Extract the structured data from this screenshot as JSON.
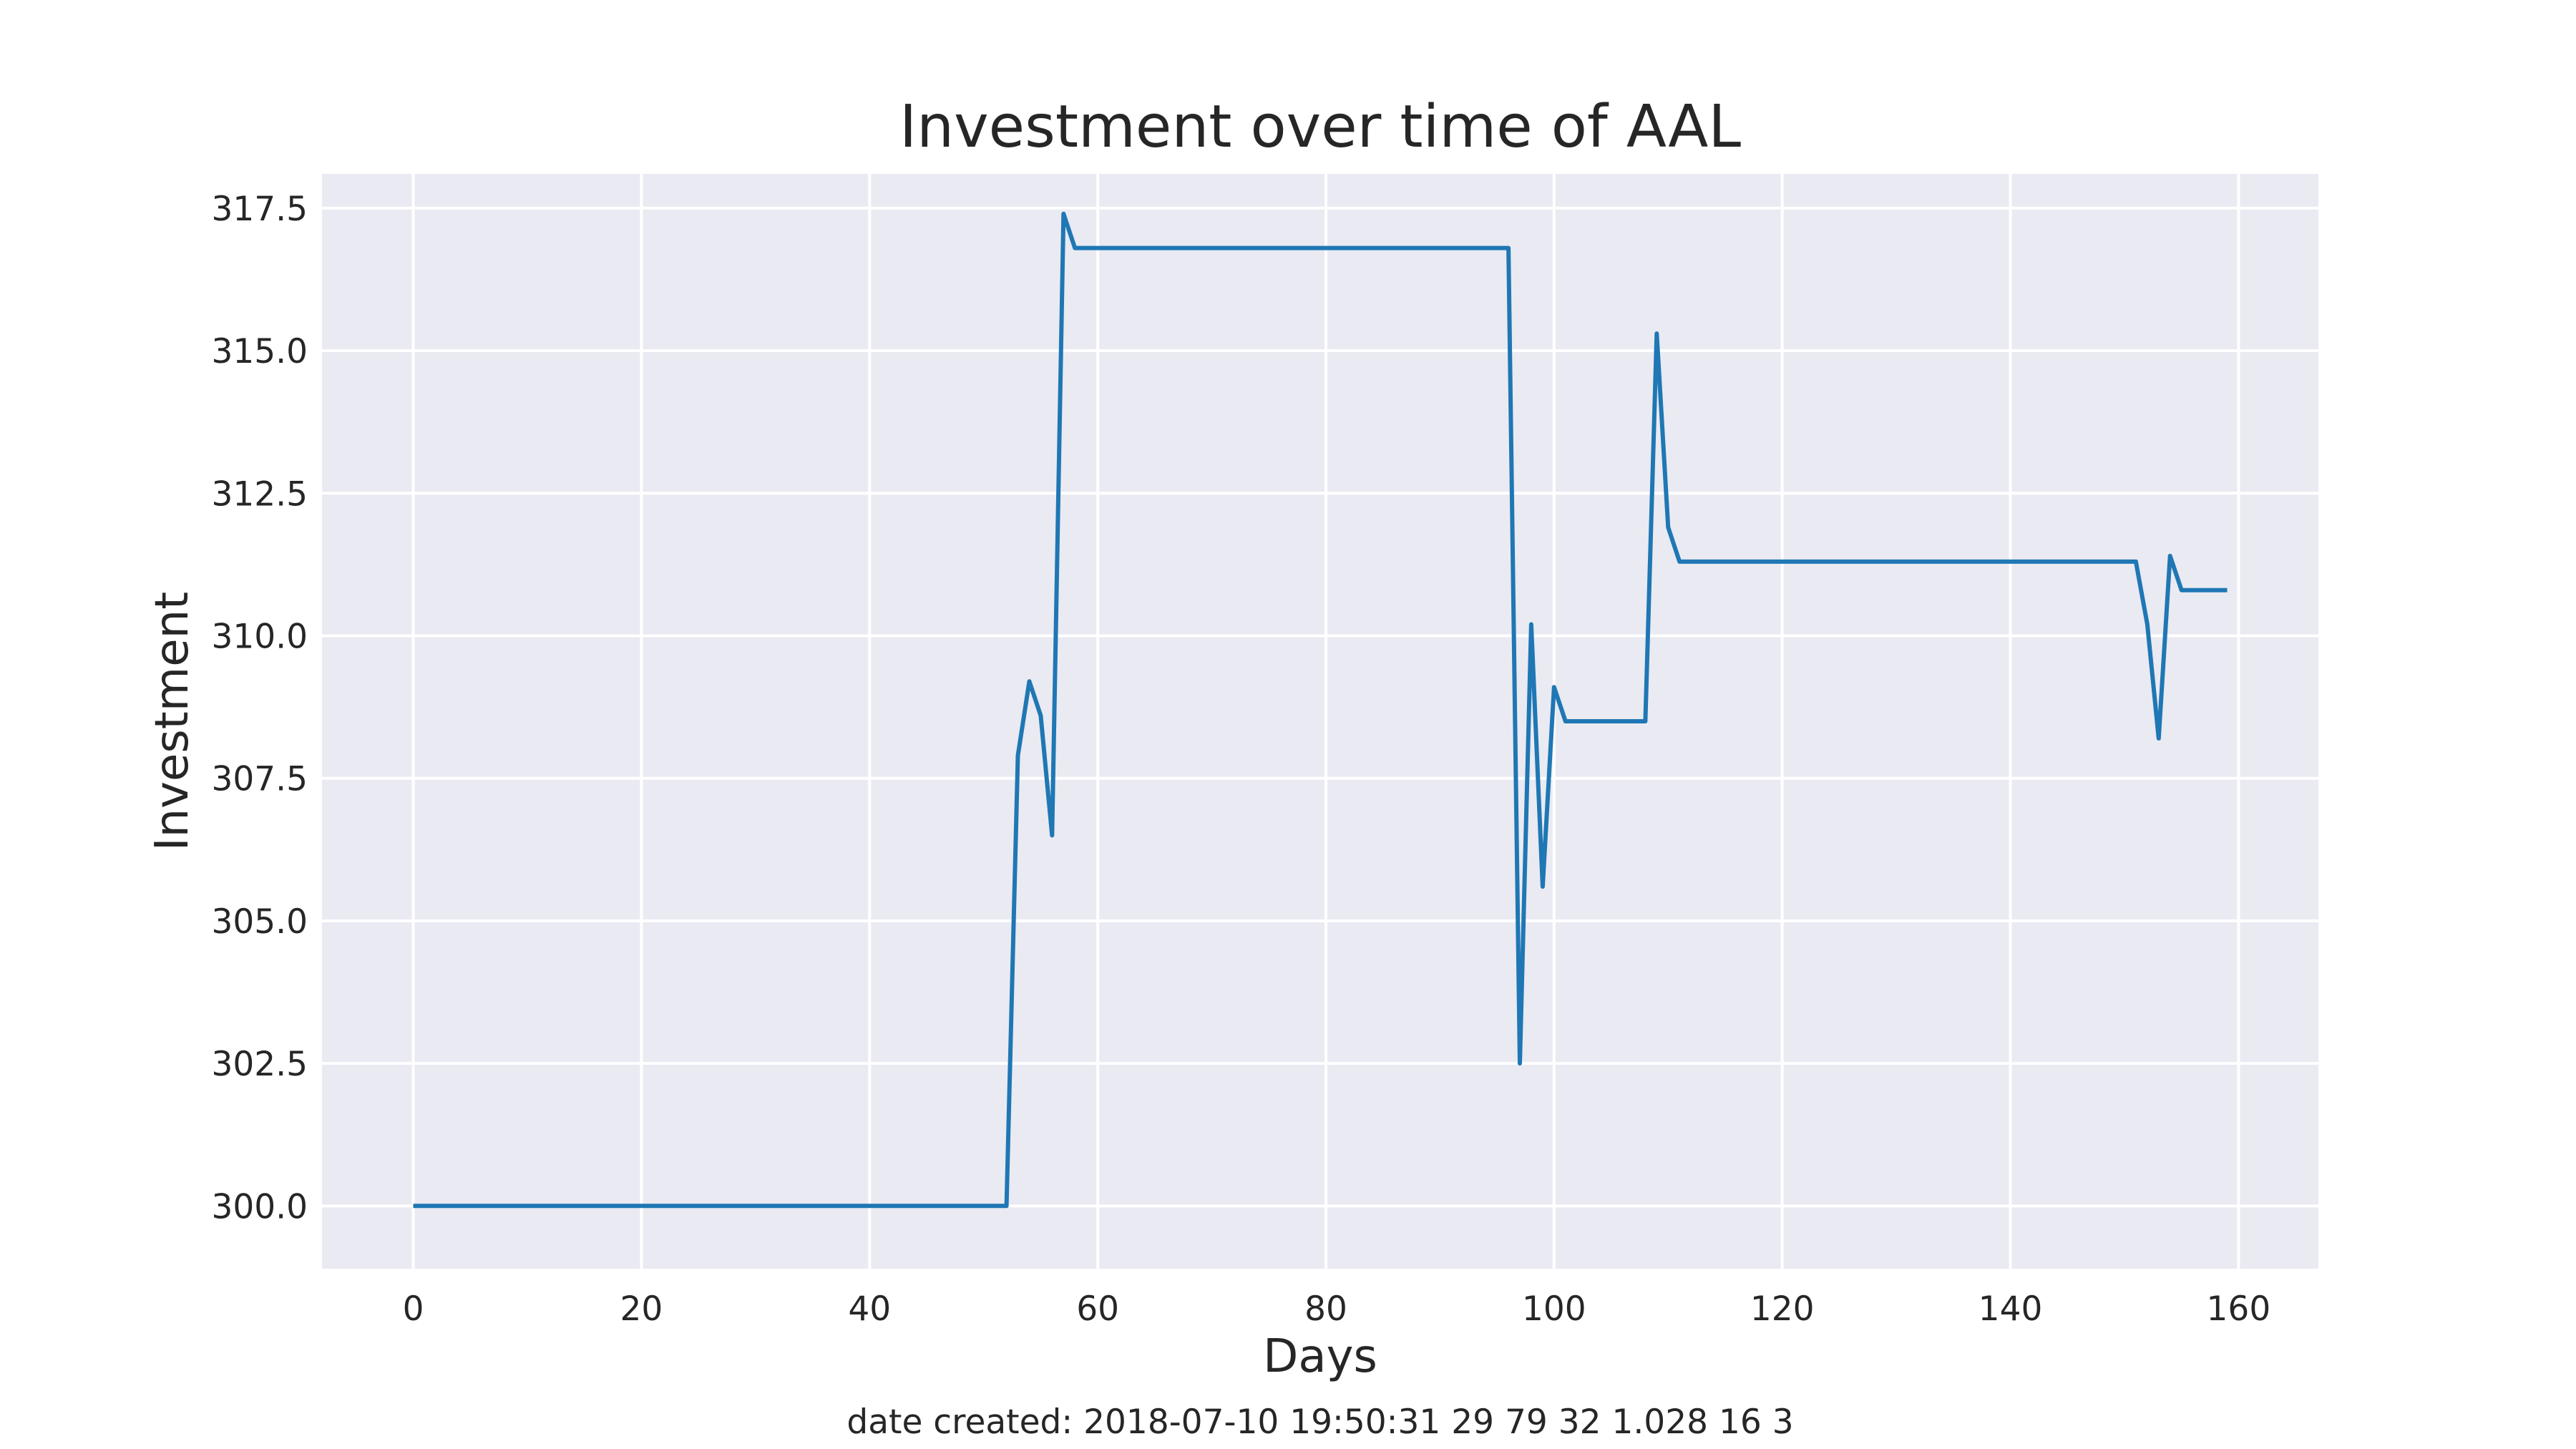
{
  "chart_data": {
    "type": "line",
    "title": "Investment over time of AAL",
    "xlabel": "Days",
    "ylabel": "Investment",
    "xlim": [
      -8,
      167
    ],
    "ylim": [
      298.9,
      318.1
    ],
    "xticks": [
      0,
      20,
      40,
      60,
      80,
      100,
      120,
      140,
      160
    ],
    "yticks": [
      300.0,
      302.5,
      305.0,
      307.5,
      310.0,
      312.5,
      315.0,
      317.5
    ],
    "ytick_labels": [
      "300.0",
      "302.5",
      "305.0",
      "307.5",
      "310.0",
      "312.5",
      "315.0",
      "317.5"
    ],
    "grid": true,
    "background": "#EAEAF2",
    "series": [
      {
        "color": "#1F77B4",
        "x": [
          0,
          52,
          53,
          54,
          55,
          56,
          57,
          58,
          96,
          97,
          98,
          99,
          100,
          101,
          108,
          109,
          110,
          111,
          151,
          152,
          153,
          154,
          155,
          159
        ],
        "y": [
          300.0,
          300.0,
          307.9,
          309.2,
          308.6,
          306.5,
          317.4,
          316.8,
          316.8,
          302.5,
          310.2,
          305.6,
          309.1,
          308.5,
          308.5,
          315.3,
          311.9,
          311.3,
          311.3,
          310.2,
          308.2,
          311.4,
          310.8,
          310.8
        ]
      }
    ]
  },
  "footer": {
    "text": "date created: 2018-07-10 19:50:31 29 79 32 1.028 16 3"
  }
}
